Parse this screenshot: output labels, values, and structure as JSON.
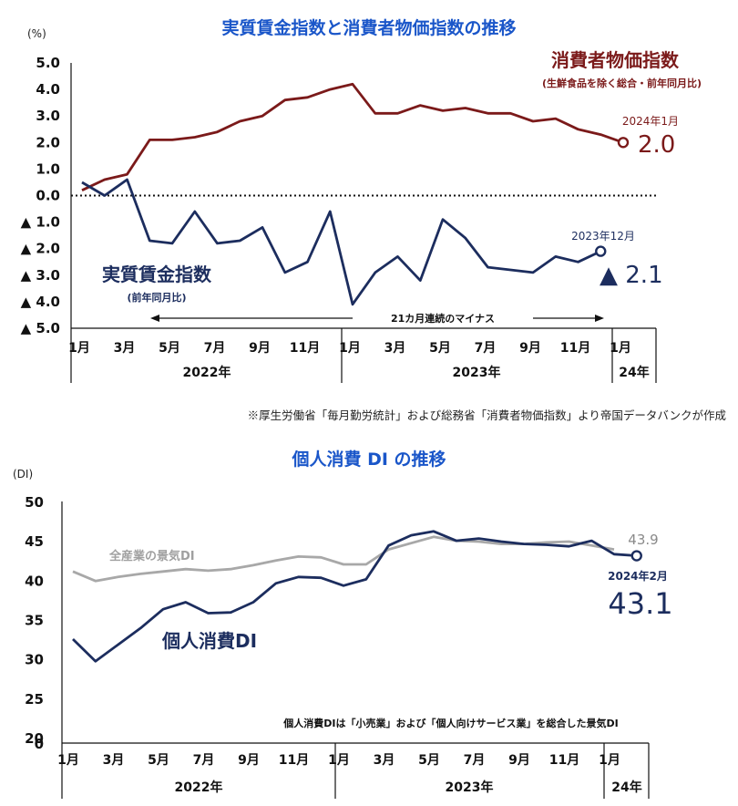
{
  "source_note": "※厚生労働省「毎月勤労統計」および総務省「消費者物価指数」より帝国データバンクが作成",
  "chart_data": [
    {
      "type": "line",
      "title": "実質賃金指数と消費者物価指数の推移",
      "ylabel": "(%)",
      "ylim": [
        -5.0,
        5.0
      ],
      "ytick_labels": [
        "5.0",
        "4.0",
        "3.0",
        "2.0",
        "1.0",
        "0.0",
        "▲ 1.0",
        "▲ 2.0",
        "▲ 3.0",
        "▲ 4.0",
        "▲ 5.0"
      ],
      "ytick_values": [
        5,
        4,
        3,
        2,
        1,
        0,
        -1,
        -2,
        -3,
        -4,
        -5
      ],
      "x_month_labels": [
        "1月",
        "3月",
        "5月",
        "7月",
        "9月",
        "11月",
        "1月",
        "3月",
        "5月",
        "7月",
        "9月",
        "11月",
        "1月"
      ],
      "x_month_index": [
        0,
        2,
        4,
        6,
        8,
        10,
        12,
        14,
        16,
        18,
        20,
        22,
        24
      ],
      "year_labels": [
        "2022年",
        "2023年",
        "24年"
      ],
      "zero_line": "dotted",
      "series": [
        {
          "name": "消費者物価指数",
          "sublabel": "(生鮮食品を除く総合・前年同月比)",
          "color": "#7b1a1a",
          "values": [
            0.2,
            0.6,
            0.8,
            2.1,
            2.1,
            2.2,
            2.4,
            2.8,
            3.0,
            3.6,
            3.7,
            4.0,
            4.2,
            3.1,
            3.1,
            3.4,
            3.2,
            3.3,
            3.1,
            3.1,
            2.8,
            2.9,
            2.5,
            2.3,
            2.0
          ],
          "end_label_period": "2024年1月",
          "end_label_value": "2.0"
        },
        {
          "name": "実質賃金指数",
          "sublabel": "(前年同月比)",
          "color": "#1c2d5e",
          "values": [
            0.5,
            0.0,
            0.6,
            -1.7,
            -1.8,
            -0.6,
            -1.8,
            -1.7,
            -1.2,
            -2.9,
            -2.5,
            -0.6,
            -4.1,
            -2.9,
            -2.3,
            -3.2,
            -0.9,
            -1.6,
            -2.7,
            -2.8,
            -2.9,
            -2.3,
            -2.5,
            -2.1
          ],
          "end_label_period": "2023年12月",
          "end_label_value": "▲ 2.1"
        }
      ],
      "annotation": "21カ月連続のマイナス"
    },
    {
      "type": "line",
      "title": "個人消費 DI の推移",
      "ylabel": "(DI)",
      "ylim": [
        0,
        50
      ],
      "ytick_labels": [
        "50",
        "45",
        "40",
        "35",
        "30",
        "25",
        "20",
        "0"
      ],
      "ytick_values": [
        50,
        45,
        40,
        35,
        30,
        25,
        20,
        0
      ],
      "x_month_labels": [
        "1月",
        "3月",
        "5月",
        "7月",
        "9月",
        "11月",
        "1月",
        "3月",
        "5月",
        "7月",
        "9月",
        "11月",
        "1月"
      ],
      "x_month_index": [
        0,
        2,
        4,
        6,
        8,
        10,
        12,
        14,
        16,
        18,
        20,
        22,
        24
      ],
      "year_labels": [
        "2022年",
        "2023年",
        "24年"
      ],
      "series": [
        {
          "name": "全産業の景気DI",
          "color": "#a8a8a8",
          "values": [
            41.1,
            39.9,
            40.4,
            40.8,
            41.1,
            41.4,
            41.2,
            41.4,
            41.9,
            42.5,
            43.0,
            42.9,
            42.0,
            42.0,
            43.9,
            44.7,
            45.5,
            45.0,
            44.9,
            44.6,
            44.6,
            44.8,
            44.9,
            44.4,
            43.9
          ],
          "end_label_value": "43.9"
        },
        {
          "name": "個人消費DI",
          "color": "#1c2d5e",
          "values": [
            32.5,
            29.7,
            31.8,
            33.9,
            36.3,
            37.2,
            35.8,
            35.9,
            37.2,
            39.6,
            40.4,
            40.3,
            39.3,
            40.1,
            44.4,
            45.7,
            46.2,
            45.0,
            45.3,
            44.9,
            44.6,
            44.5,
            44.3,
            45.0,
            43.3,
            43.1
          ],
          "end_label_period": "2024年2月",
          "end_label_value": "43.1"
        }
      ],
      "annotation": "個人消費DIは「小売業」および「個人向けサービス業」を総合した景気DI"
    }
  ]
}
